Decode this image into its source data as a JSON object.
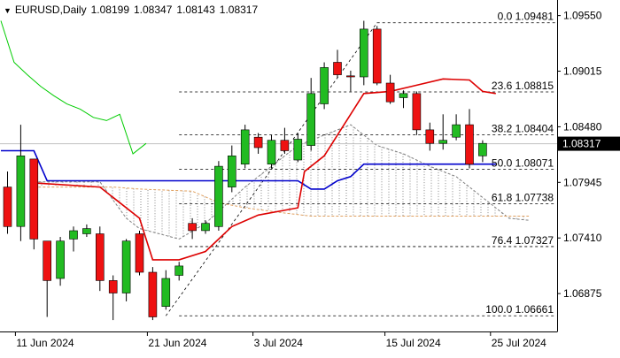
{
  "header": {
    "symbol": "EURUSD,Daily",
    "open": "1.08199",
    "high": "1.08347",
    "low": "1.08143",
    "close": "1.08317"
  },
  "colors": {
    "bull": "#22bb22",
    "bear": "#ee1111",
    "tenkan": "#dd0000",
    "kijun": "#0000cc",
    "chikou": "#00cc00",
    "senkou_a": "#808080",
    "senkou_b": "#e0a060",
    "cloud_hatch": "#555555",
    "fib_lines": "#000000",
    "price_tag_bg": "#000000",
    "price_tag_fg": "#ffffff",
    "current_line": "#c0c0c0"
  },
  "chart_data": {
    "type": "candlestick",
    "title": "EURUSD,Daily",
    "ylim": [
      1.0651,
      1.097
    ],
    "y_ticks": [
      1.0955,
      1.09015,
      1.0848,
      1.07945,
      1.0741,
      1.06875
    ],
    "y_tick_labels": [
      "1.09550",
      "1.09015",
      "1.08480",
      "1.07945",
      "1.07410",
      "1.06875"
    ],
    "x_tick_labels": [
      {
        "index": 1,
        "label": "11 Jun 2024"
      },
      {
        "index": 11,
        "label": "21 Jun 2024"
      },
      {
        "index": 19,
        "label": "3 Jul 2024"
      },
      {
        "index": 29,
        "label": "15 Jul 2024"
      },
      {
        "index": 37,
        "label": "25 Jul 2024"
      }
    ],
    "candles": [
      {
        "o": 1.079,
        "h": 1.0805,
        "l": 1.0745,
        "c": 1.0752
      },
      {
        "o": 1.0752,
        "h": 1.085,
        "l": 1.0738,
        "c": 1.082
      },
      {
        "o": 1.0817,
        "h": 1.0817,
        "l": 1.073,
        "c": 1.074
      },
      {
        "o": 1.0738,
        "h": 1.0738,
        "l": 1.0665,
        "c": 1.07
      },
      {
        "o": 1.0702,
        "h": 1.0742,
        "l": 1.0695,
        "c": 1.0738
      },
      {
        "o": 1.074,
        "h": 1.0752,
        "l": 1.0728,
        "c": 1.0748
      },
      {
        "o": 1.0745,
        "h": 1.0754,
        "l": 1.0742,
        "c": 1.075
      },
      {
        "o": 1.0745,
        "h": 1.0752,
        "l": 1.069,
        "c": 1.07
      },
      {
        "o": 1.07,
        "h": 1.0705,
        "l": 1.0662,
        "c": 1.0688
      },
      {
        "o": 1.0688,
        "h": 1.074,
        "l": 1.068,
        "c": 1.0738
      },
      {
        "o": 1.0745,
        "h": 1.0748,
        "l": 1.0705,
        "c": 1.0708
      },
      {
        "o": 1.0708,
        "h": 1.0713,
        "l": 1.0662,
        "c": 1.0665
      },
      {
        "o": 1.0675,
        "h": 1.071,
        "l": 1.0672,
        "c": 1.0702
      },
      {
        "o": 1.0705,
        "h": 1.0718,
        "l": 1.07,
        "c": 1.0714
      },
      {
        "o": 1.0755,
        "h": 1.076,
        "l": 1.074,
        "c": 1.0748
      },
      {
        "o": 1.0748,
        "h": 1.0758,
        "l": 1.0745,
        "c": 1.0755
      },
      {
        "o": 1.0752,
        "h": 1.0815,
        "l": 1.0748,
        "c": 1.081
      },
      {
        "o": 1.079,
        "h": 1.083,
        "l": 1.0785,
        "c": 1.082
      },
      {
        "o": 1.0812,
        "h": 1.085,
        "l": 1.0808,
        "c": 1.0845
      },
      {
        "o": 1.0838,
        "h": 1.0842,
        "l": 1.0822,
        "c": 1.0828
      },
      {
        "o": 1.0812,
        "h": 1.084,
        "l": 1.0808,
        "c": 1.0835
      },
      {
        "o": 1.0835,
        "h": 1.0847,
        "l": 1.0822,
        "c": 1.0825
      },
      {
        "o": 1.0816,
        "h": 1.0842,
        "l": 1.0814,
        "c": 1.0836
      },
      {
        "o": 1.083,
        "h": 1.0895,
        "l": 1.0825,
        "c": 1.088
      },
      {
        "o": 1.087,
        "h": 1.091,
        "l": 1.0865,
        "c": 1.0905
      },
      {
        "o": 1.091,
        "h": 1.0922,
        "l": 1.0895,
        "c": 1.0898
      },
      {
        "o": 1.0897,
        "h": 1.0902,
        "l": 1.0882,
        "c": 1.0896
      },
      {
        "o": 1.0896,
        "h": 1.095,
        "l": 1.0888,
        "c": 1.0942
      },
      {
        "o": 1.0942,
        "h": 1.0945,
        "l": 1.0888,
        "c": 1.089
      },
      {
        "o": 1.089,
        "h": 1.0898,
        "l": 1.087,
        "c": 1.0872
      },
      {
        "o": 1.0876,
        "h": 1.0883,
        "l": 1.0866,
        "c": 1.088
      },
      {
        "o": 1.088,
        "h": 1.0882,
        "l": 1.084,
        "c": 1.0845
      },
      {
        "o": 1.0845,
        "h": 1.0852,
        "l": 1.0825,
        "c": 1.0832
      },
      {
        "o": 1.0832,
        "h": 1.086,
        "l": 1.0826,
        "c": 1.0835
      },
      {
        "o": 1.0838,
        "h": 1.086,
        "l": 1.0835,
        "c": 1.085
      },
      {
        "o": 1.085,
        "h": 1.0865,
        "l": 1.0808,
        "c": 1.0812
      },
      {
        "o": 1.082,
        "h": 1.0835,
        "l": 1.0814,
        "c": 1.0832
      }
    ],
    "tenkan": [
      {
        "i": 2,
        "v": 1.0794
      },
      {
        "i": 7,
        "v": 1.079
      },
      {
        "i": 10,
        "v": 1.076
      },
      {
        "i": 11,
        "v": 1.072
      },
      {
        "i": 13,
        "v": 1.072
      },
      {
        "i": 15,
        "v": 1.0728
      },
      {
        "i": 17,
        "v": 1.0752
      },
      {
        "i": 19,
        "v": 1.0763
      },
      {
        "i": 22,
        "v": 1.077
      },
      {
        "i": 22.5,
        "v": 1.0805
      },
      {
        "i": 24,
        "v": 1.082
      },
      {
        "i": 26,
        "v": 1.086
      },
      {
        "i": 27,
        "v": 1.088
      },
      {
        "i": 29,
        "v": 1.0882
      },
      {
        "i": 31,
        "v": 1.0888
      },
      {
        "i": 33,
        "v": 1.0894
      },
      {
        "i": 35,
        "v": 1.0893
      },
      {
        "i": 36,
        "v": 1.0882
      },
      {
        "i": 37,
        "v": 1.088
      }
    ],
    "kijun": [
      {
        "i": -0.5,
        "v": 1.0825
      },
      {
        "i": 2,
        "v": 1.0825
      },
      {
        "i": 3,
        "v": 1.0796
      },
      {
        "i": 22,
        "v": 1.0796
      },
      {
        "i": 23,
        "v": 1.0788
      },
      {
        "i": 24,
        "v": 1.0788
      },
      {
        "i": 25,
        "v": 1.0796
      },
      {
        "i": 26,
        "v": 1.08
      },
      {
        "i": 27,
        "v": 1.0812
      },
      {
        "i": 37,
        "v": 1.0812
      }
    ],
    "chikou": [
      {
        "i": -0.5,
        "v": 1.095
      },
      {
        "i": 0.5,
        "v": 1.091
      },
      {
        "i": 1.5,
        "v": 1.0898
      },
      {
        "i": 2.5,
        "v": 1.0887
      },
      {
        "i": 3.5,
        "v": 1.0878
      },
      {
        "i": 4.5,
        "v": 1.087
      },
      {
        "i": 5.5,
        "v": 1.0865
      },
      {
        "i": 6.5,
        "v": 1.0857
      },
      {
        "i": 7.5,
        "v": 1.0854
      },
      {
        "i": 8.5,
        "v": 1.086
      },
      {
        "i": 9.5,
        "v": 1.0822
      },
      {
        "i": 10.5,
        "v": 1.0832
      }
    ],
    "senkou_a": [
      {
        "i": 2,
        "v": 1.0795
      },
      {
        "i": 7,
        "v": 1.0795
      },
      {
        "i": 9,
        "v": 1.076
      },
      {
        "i": 10,
        "v": 1.075
      },
      {
        "i": 13,
        "v": 1.074
      },
      {
        "i": 15,
        "v": 1.0755
      },
      {
        "i": 18,
        "v": 1.079
      },
      {
        "i": 20,
        "v": 1.081
      },
      {
        "i": 22,
        "v": 1.083
      },
      {
        "i": 24,
        "v": 1.084
      },
      {
        "i": 26,
        "v": 1.085
      },
      {
        "i": 28,
        "v": 1.083
      },
      {
        "i": 30,
        "v": 1.0822
      },
      {
        "i": 32,
        "v": 1.081
      },
      {
        "i": 34,
        "v": 1.08
      },
      {
        "i": 36,
        "v": 1.078
      },
      {
        "i": 38,
        "v": 1.076
      },
      {
        "i": 39.5,
        "v": 1.0758
      }
    ],
    "senkou_b": [
      {
        "i": 2,
        "v": 1.079
      },
      {
        "i": 8,
        "v": 1.079
      },
      {
        "i": 10,
        "v": 1.0788
      },
      {
        "i": 14,
        "v": 1.0786
      },
      {
        "i": 16,
        "v": 1.0775
      },
      {
        "i": 18,
        "v": 1.077
      },
      {
        "i": 21,
        "v": 1.0765
      },
      {
        "i": 23,
        "v": 1.0762
      },
      {
        "i": 39.5,
        "v": 1.0762
      }
    ],
    "fib_levels": [
      {
        "label": "0.0 1.09481",
        "v": 1.09481,
        "from": 28.0
      },
      {
        "label": "23.6 1.08815",
        "v": 1.08815,
        "from": 13.0
      },
      {
        "label": "38.2 1.08404",
        "v": 1.08404,
        "from": 13.0
      },
      {
        "label": "50.0 1.08071",
        "v": 1.08071,
        "from": 13.0
      },
      {
        "label": "61.8 1.07738",
        "v": 1.07738,
        "from": 13.0
      },
      {
        "label": "76.4 1.07327",
        "v": 1.07327,
        "from": 13.0
      },
      {
        "label": "100.0 1.06661",
        "v": 1.06661,
        "from": 13.0
      }
    ],
    "trendline": {
      "from": {
        "i": 12,
        "v": 1.06661
      },
      "to": {
        "i": 28,
        "v": 1.09481
      }
    },
    "current_price": 1.08317,
    "current_price_label": "1.08317"
  }
}
